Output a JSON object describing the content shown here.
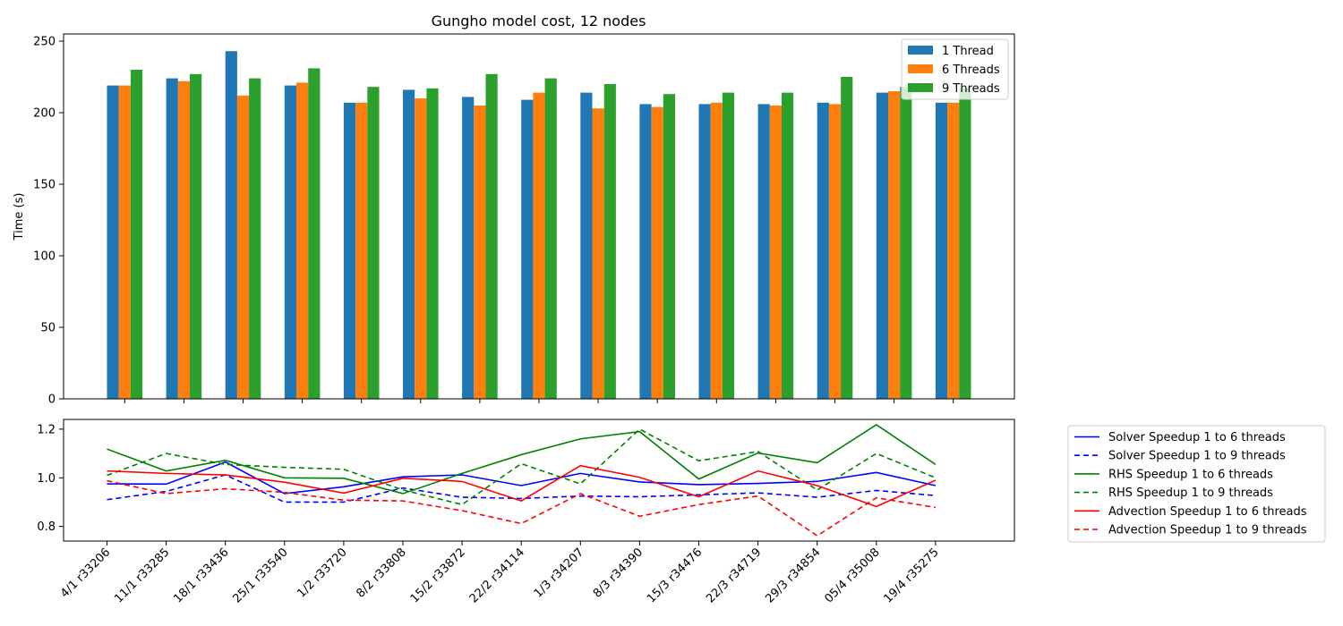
{
  "chart_data": [
    {
      "type": "bar",
      "title": "Gungho model cost, 12 nodes",
      "xlabel": "",
      "ylabel": "Time (s)",
      "ylim": [
        0,
        255
      ],
      "yticks": [
        "0",
        "50",
        "100",
        "150",
        "200",
        "250"
      ],
      "legend_position": "top-right",
      "categories": [
        "4/1 r33206",
        "11/1 r33285",
        "18/1 r33436",
        "25/1 r33540",
        "1/2 r33720",
        "8/2 r33808",
        "15/2 r33872",
        "22/2 r34114",
        "1/3 r34207",
        "8/3 r34390",
        "15/3 r34476",
        "22/3 r34719",
        "29/3 r34854",
        "05/4 r35008",
        "19/4 r35275"
      ],
      "series": [
        {
          "name": "1 Thread",
          "color": "#1f77b4",
          "values": [
            219,
            224,
            243,
            219,
            207,
            216,
            211,
            209,
            214,
            206,
            206,
            206,
            207,
            214,
            207
          ]
        },
        {
          "name": "6 Threads",
          "color": "#ff7f0e",
          "values": [
            219,
            222,
            212,
            221,
            207,
            210,
            205,
            214,
            203,
            204,
            207,
            205,
            206,
            215,
            207
          ]
        },
        {
          "name": "9 Threads",
          "color": "#2ca02c",
          "values": [
            230,
            227,
            224,
            231,
            218,
            217,
            227,
            224,
            220,
            213,
            214,
            214,
            225,
            218,
            217
          ]
        }
      ]
    },
    {
      "type": "line",
      "xlabel": "",
      "ylabel": "",
      "ylim": [
        0.74,
        1.24
      ],
      "yticks": [
        "0.8",
        "1.0",
        "1.2"
      ],
      "legend_position": "outside-right",
      "categories": [
        "4/1 r33206",
        "11/1 r33285",
        "18/1 r33436",
        "25/1 r33540",
        "1/2 r33720",
        "8/2 r33808",
        "15/2 r33872",
        "22/2 r34114",
        "1/3 r34207",
        "8/3 r34390",
        "15/3 r34476",
        "22/3 r34719",
        "29/3 r34854",
        "05/4 r35008",
        "19/4 r35275"
      ],
      "series": [
        {
          "name": "Solver Speedup 1 to 6 threads",
          "color": "#0000ff",
          "dash": "solid",
          "values": [
            0.975,
            0.974,
            1.065,
            0.935,
            0.963,
            1.004,
            1.012,
            0.968,
            1.018,
            0.983,
            0.972,
            0.977,
            0.985,
            1.022,
            0.968
          ]
        },
        {
          "name": "Solver Speedup 1 to 9 threads",
          "color": "#0000ff",
          "dash": "dashed",
          "values": [
            0.91,
            0.944,
            1.012,
            0.9,
            0.9,
            0.958,
            0.92,
            0.915,
            0.925,
            0.922,
            0.93,
            0.938,
            0.92,
            0.948,
            0.927
          ]
        },
        {
          "name": "RHS Speedup 1 to 6 threads",
          "color": "#008000",
          "dash": "solid",
          "values": [
            1.118,
            1.028,
            1.072,
            1.0,
            0.998,
            0.935,
            1.018,
            1.095,
            1.16,
            1.19,
            0.995,
            1.102,
            1.062,
            1.218,
            1.055
          ]
        },
        {
          "name": "RHS Speedup 1 to 9 threads",
          "color": "#008000",
          "dash": "dashed",
          "values": [
            1.01,
            1.1,
            1.055,
            1.043,
            1.035,
            0.95,
            0.89,
            1.058,
            0.975,
            1.2,
            1.07,
            1.108,
            0.95,
            1.1,
            1.0
          ]
        },
        {
          "name": "Advection Speedup 1 to 6 threads",
          "color": "#ff0000",
          "dash": "solid",
          "values": [
            1.028,
            1.018,
            1.012,
            0.982,
            0.937,
            0.998,
            0.985,
            0.905,
            1.05,
            1.002,
            0.922,
            1.028,
            0.968,
            0.882,
            0.99
          ]
        },
        {
          "name": "Advection Speedup 1 to 9 threads",
          "color": "#ff0000",
          "dash": "dashed",
          "values": [
            0.988,
            0.935,
            0.955,
            0.94,
            0.908,
            0.905,
            0.865,
            0.812,
            0.935,
            0.842,
            0.89,
            0.925,
            0.762,
            0.918,
            0.878
          ]
        }
      ]
    }
  ]
}
